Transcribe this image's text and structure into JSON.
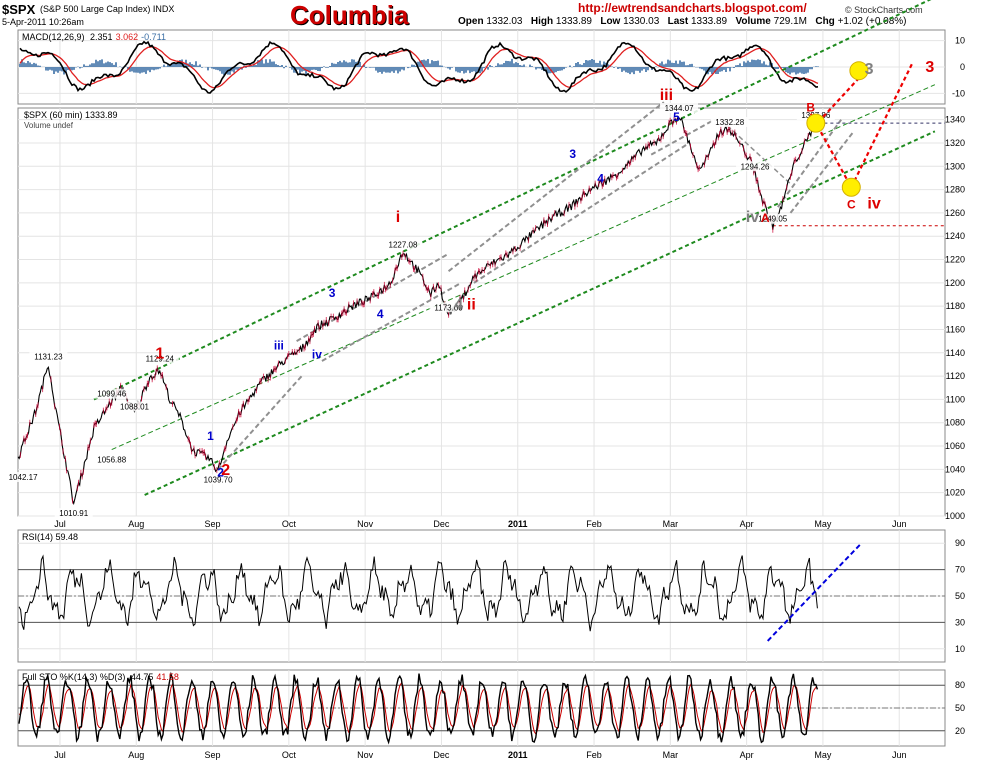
{
  "header": {
    "ticker": "$SPX",
    "index_name": "(S&P 500 Large Cap Index) INDX",
    "date_line": "5-Apr-2011 10:26am",
    "title": "Columbia",
    "url": "http://ewtrendsandcharts.blogspot.com/",
    "brand": "© StockCharts.com",
    "quote": {
      "open_label": "Open",
      "open": "1332.03",
      "high_label": "High",
      "high": "1333.89",
      "low_label": "Low",
      "low": "1330.03",
      "last_label": "Last",
      "last": "1333.89",
      "volume_label": "Volume",
      "volume": "729.1M",
      "chg_label": "Chg",
      "chg": "+1.02 (+0.08%)"
    }
  },
  "colors": {
    "price_line": "#000000",
    "down_bars": "#cc0033",
    "channel_green": "#1e8a1e",
    "channel_gray": "#909090",
    "wave_red": "#dd0000",
    "wave_blue": "#0000cc",
    "wave_gray": "#808080",
    "target_yellow": "#ffee00",
    "macd_line": "#000000",
    "macd_signal": "#e02020",
    "macd_hist": "#3a6ea5",
    "rsi_trend": "#0000dd"
  },
  "chart_data": [
    {
      "type": "line",
      "panel": "macd",
      "label": "MACD(12,26,9)",
      "values_text": [
        "2.351",
        "3.062",
        "-0.711"
      ],
      "value_colors": [
        "#000000",
        "#e02020",
        "#3a6ea5"
      ],
      "y_ticks": [
        10,
        0,
        -10
      ],
      "ylim": [
        -14,
        14
      ],
      "series": [
        {
          "name": "MACD",
          "value": 2.351
        },
        {
          "name": "Signal",
          "value": 3.062
        },
        {
          "name": "Histogram",
          "value": -0.711
        }
      ],
      "grid": true
    },
    {
      "type": "line",
      "panel": "price",
      "label": "$SPX (60 min) 1333.89",
      "sublabel": "Volume undef",
      "ylim": [
        1000,
        1350
      ],
      "y_ticks": [
        1000,
        1020,
        1040,
        1060,
        1080,
        1100,
        1120,
        1140,
        1160,
        1180,
        1200,
        1220,
        1240,
        1260,
        1280,
        1300,
        1320,
        1340
      ],
      "x_ticks": [
        "Jul",
        "Aug",
        "Sep",
        "Oct",
        "Nov",
        "Dec",
        "2011",
        "Feb",
        "Mar",
        "Apr",
        "May",
        "Jun"
      ],
      "x_range_days": [
        0,
        366
      ],
      "grid": true,
      "series": [
        {
          "name": "$SPX",
          "points": [
            [
              0,
              1050
            ],
            [
              7,
              1090
            ],
            [
              12,
              1131
            ],
            [
              15,
              1090
            ],
            [
              22,
              1011
            ],
            [
              30,
              1075
            ],
            [
              37,
              1099
            ],
            [
              41,
              1110
            ],
            [
              46,
              1088
            ],
            [
              52,
              1119
            ],
            [
              56,
              1125
            ],
            [
              60,
              1100
            ],
            [
              64,
              1085
            ],
            [
              69,
              1056
            ],
            [
              75,
              1050
            ],
            [
              79,
              1039
            ],
            [
              83,
              1068
            ],
            [
              88,
              1090
            ],
            [
              96,
              1115
            ],
            [
              101,
              1125
            ],
            [
              106,
              1135
            ],
            [
              112,
              1143
            ],
            [
              118,
              1162
            ],
            [
              125,
              1170
            ],
            [
              132,
              1180
            ],
            [
              140,
              1188
            ],
            [
              147,
              1200
            ],
            [
              152,
              1227
            ],
            [
              158,
              1210
            ],
            [
              163,
              1190
            ],
            [
              166,
              1200
            ],
            [
              170,
              1173
            ],
            [
              175,
              1185
            ],
            [
              180,
              1205
            ],
            [
              186,
              1215
            ],
            [
              194,
              1225
            ],
            [
              202,
              1240
            ],
            [
              210,
              1255
            ],
            [
              218,
              1265
            ],
            [
              226,
              1280
            ],
            [
              234,
              1290
            ],
            [
              240,
              1300
            ],
            [
              247,
              1315
            ],
            [
              252,
              1320
            ],
            [
              257,
              1335
            ],
            [
              261,
              1344
            ],
            [
              265,
              1320
            ],
            [
              269,
              1296
            ],
            [
              273,
              1310
            ],
            [
              277,
              1330
            ],
            [
              281,
              1332
            ],
            [
              285,
              1320
            ],
            [
              289,
              1305
            ],
            [
              291,
              1295
            ],
            [
              294,
              1270
            ],
            [
              298,
              1249
            ],
            [
              301,
              1262
            ],
            [
              304,
              1285
            ],
            [
              307,
              1305
            ],
            [
              311,
              1320
            ],
            [
              314,
              1333
            ]
          ]
        }
      ],
      "price_labels": [
        {
          "text": "1042.17",
          "x": 2,
          "y": 1042
        },
        {
          "text": "1131.23",
          "x": 12,
          "y": 1131
        },
        {
          "text": "1010.91",
          "x": 22,
          "y": 1011
        },
        {
          "text": "1099.46",
          "x": 37,
          "y": 1099
        },
        {
          "text": "1056.88",
          "x": 37,
          "y": 1057
        },
        {
          "text": "1088.01",
          "x": 46,
          "y": 1088
        },
        {
          "text": "1129.24",
          "x": 56,
          "y": 1129
        },
        {
          "text": "1039.70",
          "x": 79,
          "y": 1040
        },
        {
          "text": "1227.08",
          "x": 152,
          "y": 1227
        },
        {
          "text": "1173.00",
          "x": 170,
          "y": 1173
        },
        {
          "text": "1344.07",
          "x": 261,
          "y": 1344
        },
        {
          "text": "1332.28",
          "x": 281,
          "y": 1332
        },
        {
          "text": "1294.26",
          "x": 291,
          "y": 1294
        },
        {
          "text": "1249.05",
          "x": 298,
          "y": 1249
        },
        {
          "text": "1337.86",
          "x": 315,
          "y": 1338
        }
      ],
      "wave_labels": [
        {
          "text": "1",
          "color": "red",
          "x": 56,
          "y": 1135
        },
        {
          "text": "2",
          "color": "red",
          "x": 82,
          "y": 1035
        },
        {
          "text": "1",
          "color": "blue",
          "x": 76,
          "y": 1065
        },
        {
          "text": "2",
          "color": "blue",
          "x": 80,
          "y": 1034
        },
        {
          "text": "iii",
          "color": "blue",
          "x": 103,
          "y": 1143
        },
        {
          "text": "iv",
          "color": "blue",
          "x": 118,
          "y": 1135
        },
        {
          "text": "3",
          "color": "blue",
          "x": 124,
          "y": 1188
        },
        {
          "text": "4",
          "color": "blue",
          "x": 143,
          "y": 1170
        },
        {
          "text": "i",
          "color": "red",
          "x": 150,
          "y": 1252
        },
        {
          "text": "4",
          "color": "gray",
          "x": 174,
          "y": 1177
        },
        {
          "text": "ii",
          "color": "red",
          "x": 179,
          "y": 1177
        },
        {
          "text": "3",
          "color": "blue",
          "x": 219,
          "y": 1307
        },
        {
          "text": "4",
          "color": "blue",
          "x": 230,
          "y": 1286
        },
        {
          "text": "iii",
          "color": "red",
          "x": 256,
          "y": 1357
        },
        {
          "text": "5",
          "color": "blue",
          "x": 260,
          "y": 1339
        },
        {
          "text": "iv",
          "color": "gray",
          "x": 290,
          "y": 1252
        },
        {
          "text": "A",
          "color": "red",
          "x": 295,
          "y": 1252
        },
        {
          "text": "B",
          "color": "red",
          "x": 313,
          "y": 1347
        },
        {
          "text": "3",
          "color": "gray",
          "x": 336,
          "y": 1379
        },
        {
          "text": "C",
          "color": "red",
          "x": 329,
          "y": 1264
        },
        {
          "text": "iv",
          "color": "red",
          "x": 338,
          "y": 1264
        },
        {
          "text": "3",
          "color": "red",
          "x": 360,
          "y": 1381
        }
      ],
      "projections": {
        "red_dotted": [
          [
            313,
            1345
          ],
          [
            329,
            1282
          ],
          [
            353,
            1388
          ]
        ],
        "red_dotted_short": [
          [
            316,
            1338
          ],
          [
            333,
            1378
          ]
        ],
        "targets": [
          [
            332,
            1382
          ],
          [
            329,
            1282
          ]
        ],
        "horizontal_lines": [
          {
            "y": 1249,
            "from": 298
          },
          {
            "y": 1337,
            "from": 316
          }
        ]
      }
    },
    {
      "type": "line",
      "panel": "rsi",
      "label": "RSI(14)",
      "value_text": "59.48",
      "y_ticks": [
        90,
        70,
        50,
        30,
        10
      ],
      "ylim": [
        0,
        100
      ],
      "reference_lines": [
        70,
        30
      ],
      "trendline": [
        [
          296,
          16
        ],
        [
          333,
          90
        ]
      ],
      "grid": true
    },
    {
      "type": "line",
      "panel": "stochastic",
      "label": "Full STO %K(14,3) %D(3)",
      "values_text": [
        "44.75",
        "41.58"
      ],
      "value_colors": [
        "#000000",
        "#cc0000"
      ],
      "y_ticks": [
        80,
        50,
        20
      ],
      "ylim": [
        0,
        100
      ],
      "reference_lines": [
        80,
        20
      ],
      "grid": true
    }
  ]
}
